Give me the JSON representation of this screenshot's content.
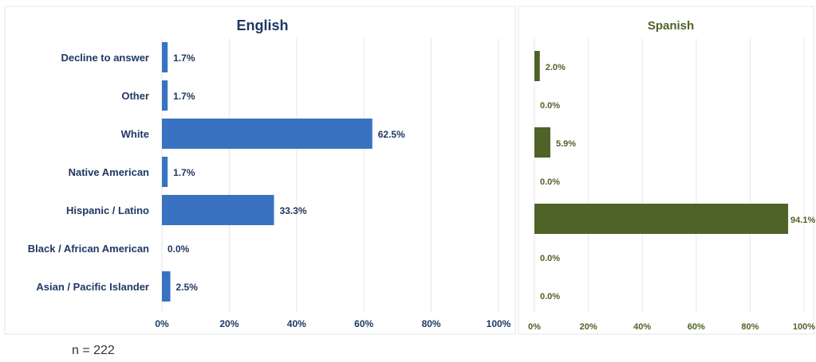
{
  "colors": {
    "english_bar": "#3a72c2",
    "english_text": "#1f3864",
    "spanish_bar": "#4f6228",
    "spanish_text": "#4f6228",
    "grid": "#e6e6e6"
  },
  "footnote": "n = 222",
  "chart_data": [
    {
      "type": "bar",
      "orientation": "horizontal",
      "title": "English",
      "categories": [
        "Decline to answer",
        "Other",
        "White",
        "Native American",
        "Hispanic / Latino",
        "Black / African American",
        "Asian / Pacific Islander"
      ],
      "values": [
        1.7,
        1.7,
        62.5,
        1.7,
        33.3,
        0.0,
        2.5
      ],
      "value_labels": [
        "1.7%",
        "1.7%",
        "62.5%",
        "1.7%",
        "33.3%",
        "0.0%",
        "2.5%"
      ],
      "xlim": [
        0,
        100
      ],
      "xticks": [
        "0%",
        "20%",
        "40%",
        "60%",
        "80%",
        "100%"
      ],
      "grid": true,
      "color": "#3a72c2"
    },
    {
      "type": "bar",
      "orientation": "horizontal",
      "title": "Spanish",
      "categories": [
        "Decline to answer",
        "Other",
        "White",
        "Native American",
        "Hispanic / Latino",
        "Black / African American",
        "Asian / Pacific Islander"
      ],
      "values": [
        2.0,
        0.0,
        5.9,
        0.0,
        94.1,
        0.0,
        0.0
      ],
      "value_labels": [
        "2.0%",
        "0.0%",
        "5.9%",
        "0.0%",
        "94.1%",
        "0.0%",
        "0.0%"
      ],
      "xlim": [
        0,
        100
      ],
      "xticks": [
        "0%",
        "20%",
        "40%",
        "60%",
        "80%",
        "100%"
      ],
      "grid": true,
      "color": "#4f6228"
    }
  ]
}
